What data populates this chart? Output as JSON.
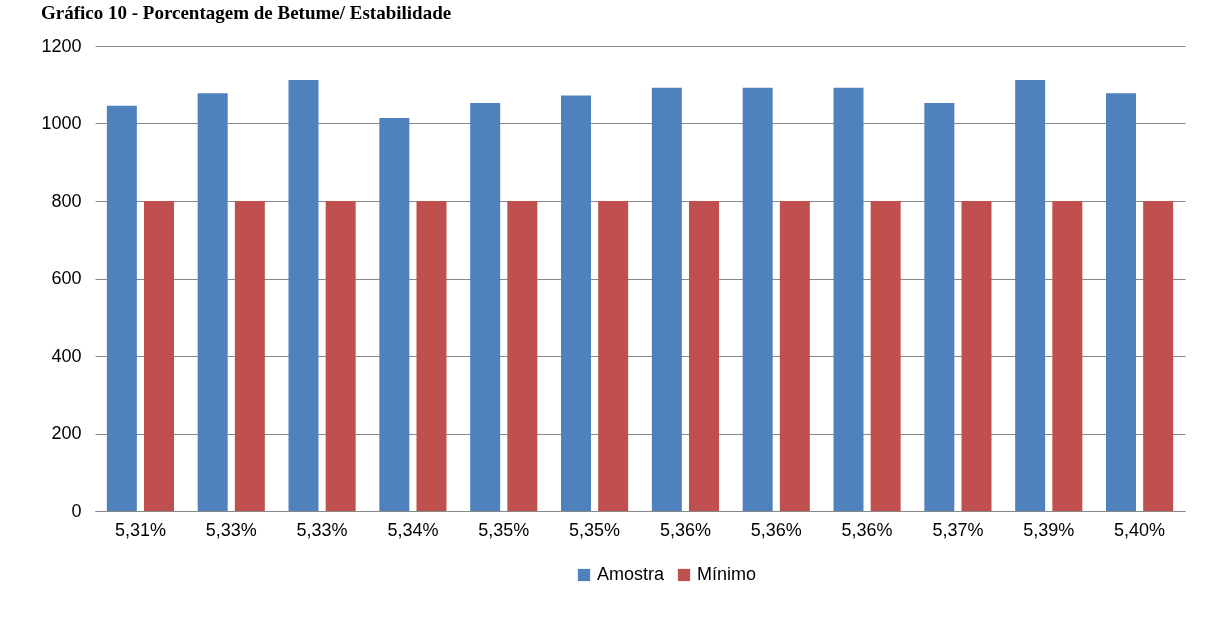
{
  "chart_data": {
    "type": "bar",
    "title": "Gráfico 10 - Porcentagem de Betume/ Estabilidade",
    "categories": [
      "5,31%",
      "5,33%",
      "5,33%",
      "5,34%",
      "5,35%",
      "5,35%",
      "5,36%",
      "5,36%",
      "5,36%",
      "5,37%",
      "5,39%",
      "5,40%"
    ],
    "series": [
      {
        "name": "Amostra",
        "color": "#4f81bd",
        "values": [
          1046,
          1078,
          1112,
          1014,
          1053,
          1072,
          1092,
          1092,
          1092,
          1053,
          1112,
          1078
        ]
      },
      {
        "name": "Mínimo",
        "color": "#c0504d",
        "values": [
          800,
          800,
          800,
          800,
          800,
          800,
          800,
          800,
          800,
          800,
          800,
          800
        ]
      }
    ],
    "ylim": [
      0,
      1200
    ],
    "yticks": [
      0,
      200,
      400,
      600,
      800,
      1000,
      1200
    ],
    "grid": "y",
    "legend": "bottom"
  }
}
